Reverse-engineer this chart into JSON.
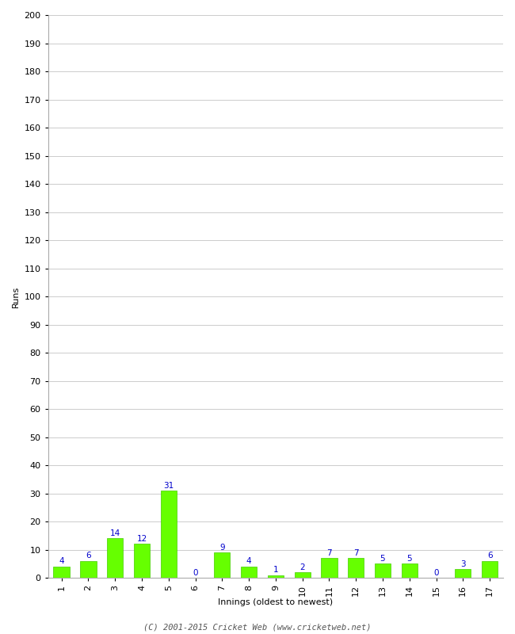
{
  "innings": [
    1,
    2,
    3,
    4,
    5,
    6,
    7,
    8,
    9,
    10,
    11,
    12,
    13,
    14,
    15,
    16,
    17
  ],
  "runs": [
    4,
    6,
    14,
    12,
    31,
    0,
    9,
    4,
    1,
    2,
    7,
    7,
    5,
    5,
    0,
    3,
    6
  ],
  "bar_color": "#66ff00",
  "bar_edge_color": "#44cc00",
  "label_color": "#0000cc",
  "ylabel": "Runs",
  "xlabel": "Innings (oldest to newest)",
  "footer": "(C) 2001-2015 Cricket Web (www.cricketweb.net)",
  "ylim": [
    0,
    200
  ],
  "yticks": [
    0,
    10,
    20,
    30,
    40,
    50,
    60,
    70,
    80,
    90,
    100,
    110,
    120,
    130,
    140,
    150,
    160,
    170,
    180,
    190,
    200
  ],
  "background_color": "#ffffff",
  "grid_color": "#cccccc",
  "label_fontsize": 7.5,
  "axis_tick_fontsize": 8,
  "axis_label_fontsize": 8,
  "footer_fontsize": 7.5
}
